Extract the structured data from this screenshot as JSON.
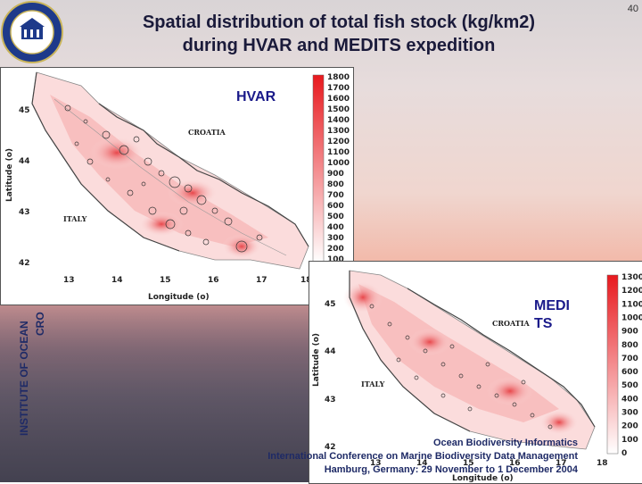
{
  "page_number": "40",
  "title_line1": "Spatial distribution of total fish stock (kg/km2)",
  "title_line2": "during HVAR and MEDITS expedition",
  "side_text_1": "INSTITUTE OF OCEAN",
  "side_text_2": "CRO",
  "maps": [
    {
      "label": "HVAR",
      "country_labels": [
        "CROATIA",
        "ITALY"
      ],
      "x_axis_title": "Longitude (o)",
      "y_axis_title": "Latitude (o)",
      "x_ticks": [
        "13",
        "14",
        "15",
        "16",
        "17",
        "18"
      ],
      "y_ticks": [
        "45",
        "44",
        "43",
        "42"
      ],
      "colorbar": [
        "1800",
        "1700",
        "1600",
        "1500",
        "1400",
        "1300",
        "1200",
        "1100",
        "1000",
        "900",
        "800",
        "700",
        "600",
        "500",
        "400",
        "300",
        "200",
        "100"
      ]
    },
    {
      "label_line1": "MEDI",
      "label_line2": "TS",
      "country_labels": [
        "CROATIA",
        "ITALY"
      ],
      "x_axis_title": "Longitude (o)",
      "y_axis_title": "Latitude (o)",
      "x_ticks": [
        "13",
        "14",
        "15",
        "16",
        "17",
        "18"
      ],
      "y_ticks": [
        "45",
        "44",
        "43",
        "42"
      ],
      "colorbar": [
        "1300",
        "1200",
        "1100",
        "1000",
        "900",
        "800",
        "700",
        "600",
        "500",
        "400",
        "300",
        "200",
        "100",
        "0"
      ]
    }
  ],
  "footer": {
    "line1": "Ocean Biodiversity Informatics",
    "line2": "International Conference on Marine Biodiversity Data Management",
    "line3": "Hamburg, Germany: 29 November to 1 December 2004"
  },
  "colors": {
    "title": "#1a1a3a",
    "label": "#1a1a8a",
    "footer": "#1e2a66",
    "scale_high": "#e8191e"
  }
}
